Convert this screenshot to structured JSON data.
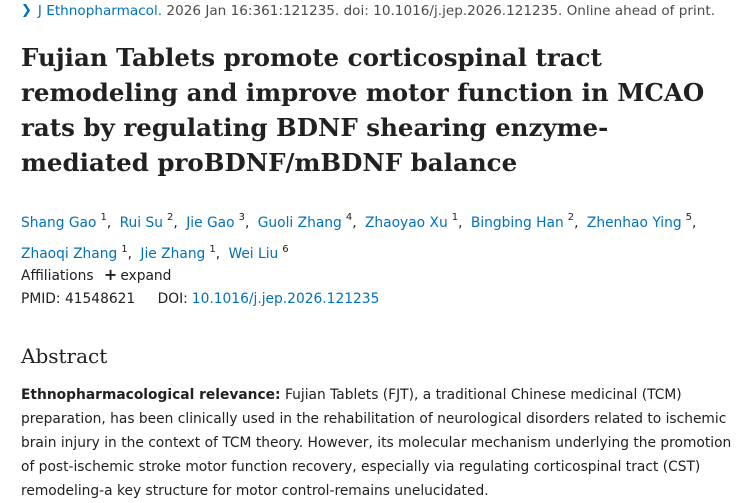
{
  "citation": {
    "journal": "J Ethnopharmacol.",
    "details": "2026 Jan 16:361:121235. doi: 10.1016/j.jep.2026.121235. Online ahead of print."
  },
  "title": "Fujian Tablets promote corticospinal tract remodeling and improve motor function in MCAO rats by regulating BDNF shearing enzyme-mediated proBDNF/mBDNF balance",
  "authors": [
    {
      "name": "Shang Gao",
      "aff": "1"
    },
    {
      "name": "Rui Su",
      "aff": "2"
    },
    {
      "name": "Jie Gao",
      "aff": "3"
    },
    {
      "name": "Guoli Zhang",
      "aff": "4"
    },
    {
      "name": "Zhaoyao Xu",
      "aff": "1"
    },
    {
      "name": "Bingbing Han",
      "aff": "2"
    },
    {
      "name": "Zhenhao Ying",
      "aff": "5"
    },
    {
      "name": "Zhaoqi Zhang",
      "aff": "1"
    },
    {
      "name": "Jie Zhang",
      "aff": "1"
    },
    {
      "name": "Wei Liu",
      "aff": "6"
    }
  ],
  "affiliations": {
    "label": "Affiliations",
    "expand": "expand"
  },
  "ids": {
    "pmid_label": "PMID:",
    "pmid": "41548621",
    "doi_label": "DOI:",
    "doi": "10.1016/j.jep.2026.121235"
  },
  "abstract": {
    "heading": "Abstract",
    "relevance_label": "Ethnopharmacological relevance:",
    "relevance_text": "Fujian Tablets (FJT), a traditional Chinese medicinal (TCM) preparation, has been clinically used in the rehabilitation of neurological disorders related to ischemic brain injury in the context of TCM theory. However, its molecular mechanism underlying the promotion of post-ischemic stroke motor function recovery, especially via regulating corticospinal tract (CST) remodeling-a key structure for motor control-remains unelucidated."
  }
}
